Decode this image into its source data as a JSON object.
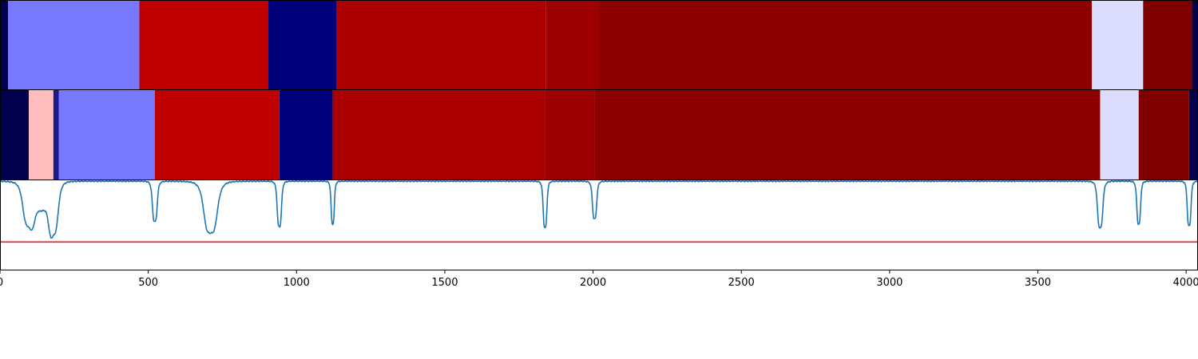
{
  "chart_data": {
    "type": "heatmap",
    "title": "",
    "xlabel": "",
    "ylabel": "",
    "xlim": [
      0,
      4040
    ],
    "x_ticks": [
      0,
      500,
      1000,
      1500,
      2000,
      2500,
      3000,
      3500,
      4000
    ],
    "x_tick_labels": [
      "0",
      "500",
      "1000",
      "1500",
      "2000",
      "2500",
      "3000",
      "3500",
      "4000"
    ],
    "grid": false,
    "legend": "none",
    "tracks": [
      {
        "segments": [
          {
            "start": 0,
            "end": 27,
            "color": "#00004d"
          },
          {
            "start": 27,
            "end": 470,
            "color": "#7878ff"
          },
          {
            "start": 470,
            "end": 905,
            "color": "#c00000"
          },
          {
            "start": 905,
            "end": 1135,
            "color": "#00007a"
          },
          {
            "start": 1135,
            "end": 1840,
            "color": "#ab0000"
          },
          {
            "start": 1840,
            "end": 2020,
            "color": "#9d0000"
          },
          {
            "start": 2020,
            "end": 3682,
            "color": "#8d0000"
          },
          {
            "start": 3682,
            "end": 3855,
            "color": "#dcdcff"
          },
          {
            "start": 3855,
            "end": 4020,
            "color": "#800000"
          },
          {
            "start": 4020,
            "end": 4040,
            "color": "#00004d"
          }
        ]
      },
      {
        "segments": [
          {
            "start": 0,
            "end": 97,
            "color": "#00004d"
          },
          {
            "start": 97,
            "end": 180,
            "color": "#ffbcbc"
          },
          {
            "start": 180,
            "end": 198,
            "color": "#1a1a8a"
          },
          {
            "start": 198,
            "end": 522,
            "color": "#7878ff"
          },
          {
            "start": 522,
            "end": 942,
            "color": "#c00000"
          },
          {
            "start": 942,
            "end": 1122,
            "color": "#00007a"
          },
          {
            "start": 1122,
            "end": 1838,
            "color": "#ab0000"
          },
          {
            "start": 1838,
            "end": 2005,
            "color": "#9d0000"
          },
          {
            "start": 2005,
            "end": 3710,
            "color": "#8d0000"
          },
          {
            "start": 3710,
            "end": 3840,
            "color": "#dcdcff"
          },
          {
            "start": 3840,
            "end": 4010,
            "color": "#800000"
          },
          {
            "start": 4010,
            "end": 4040,
            "color": "#00004d"
          }
        ]
      }
    ],
    "line_plot": {
      "ylim": [
        0,
        1
      ],
      "line_color": "#1f77b4",
      "threshold": 0.31,
      "threshold_color": "#e41a1c",
      "baseline": 0.99,
      "dips": [
        {
          "center": 97,
          "depth": 0.48,
          "width": 22
        },
        {
          "center": 180,
          "depth": 0.56,
          "width": 18
        },
        {
          "center": 522,
          "depth": 0.45,
          "width": 9
        },
        {
          "center": 710,
          "depth": 0.58,
          "width": 25
        },
        {
          "center": 942,
          "depth": 0.51,
          "width": 8
        },
        {
          "center": 1122,
          "depth": 0.48,
          "width": 6
        },
        {
          "center": 1838,
          "depth": 0.52,
          "width": 7
        },
        {
          "center": 2005,
          "depth": 0.42,
          "width": 8
        },
        {
          "center": 3710,
          "depth": 0.52,
          "width": 10
        },
        {
          "center": 3840,
          "depth": 0.48,
          "width": 7
        },
        {
          "center": 4010,
          "depth": 0.5,
          "width": 7
        }
      ],
      "shoulder": {
        "center": 140,
        "depth": 0.28,
        "width": 30
      }
    }
  }
}
